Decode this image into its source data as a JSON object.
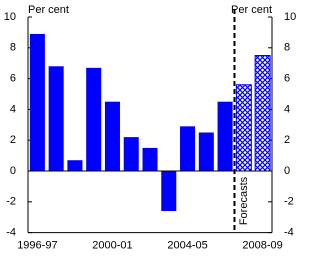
{
  "chart_data": {
    "type": "bar",
    "y_label_left": "Per cent",
    "y_label_right": "Per cent",
    "annotation": "Forecasts",
    "categories": [
      "1996-97",
      null,
      null,
      null,
      "2000-01",
      null,
      null,
      null,
      "2004-05",
      null,
      null,
      null,
      "2008-09"
    ],
    "values": [
      8.9,
      6.8,
      0.7,
      6.7,
      4.5,
      2.2,
      1.5,
      -2.6,
      2.9,
      2.5,
      4.5,
      5.6,
      7.5
    ],
    "hatched": [
      false,
      false,
      false,
      false,
      false,
      false,
      false,
      false,
      false,
      false,
      false,
      true,
      true
    ],
    "color": "#0000ff",
    "ylim": [
      -4,
      10
    ],
    "yticks": [
      -4,
      -2,
      0,
      2,
      4,
      6,
      8,
      10
    ]
  }
}
